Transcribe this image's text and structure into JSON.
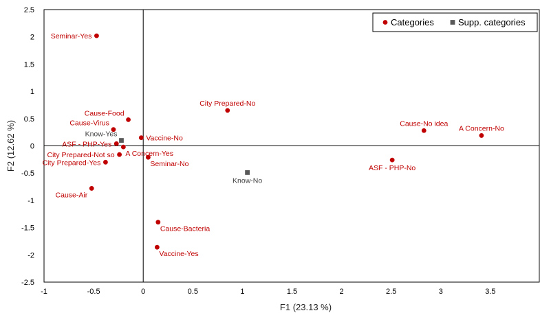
{
  "chart_data": {
    "type": "scatter",
    "xlabel": "F1 (23.13 %)",
    "ylabel": "F2 (12.62 %)",
    "xlim": [
      -1,
      4
    ],
    "ylim": [
      -2.5,
      2.5
    ],
    "x_ticks": [
      -1,
      -0.5,
      0,
      0.5,
      1,
      1.5,
      2,
      2.5,
      3,
      3.5
    ],
    "y_ticks": [
      -2.5,
      -2,
      -1.5,
      -1,
      -0.5,
      0,
      0.5,
      1,
      1.5,
      2,
      2.5
    ],
    "x_tick_labels": [
      "-1",
      "-0.5",
      "0",
      "0.5",
      "1",
      "1.5",
      "2",
      "2.5",
      "3",
      "3.5"
    ],
    "y_tick_labels": [
      "-2.5",
      "-2",
      "-1.5",
      "-1",
      "-0.5",
      "0",
      "0.5",
      "1",
      "1.5",
      "2",
      "2.5"
    ],
    "grid": false,
    "legend_position": "top-right",
    "series": [
      {
        "name": "Categories",
        "marker": "circle",
        "color": "#c00000",
        "points": [
          {
            "label": "Seminar-Yes",
            "x": -0.47,
            "y": 2.02,
            "label_pos": "left"
          },
          {
            "label": "City Prepared-No",
            "x": 0.85,
            "y": 0.65,
            "label_pos": "above"
          },
          {
            "label": "Cause-Food",
            "x": -0.15,
            "y": 0.48,
            "label_pos": "upper-left"
          },
          {
            "label": "Cause-Virus",
            "x": -0.3,
            "y": 0.3,
            "label_pos": "upper-left"
          },
          {
            "label": "Vaccine-No",
            "x": -0.02,
            "y": 0.15,
            "label_pos": "right"
          },
          {
            "label": "ASF - PHP-Yes",
            "x": -0.27,
            "y": 0.04,
            "label_pos": "left"
          },
          {
            "label": "A Concern-Yes",
            "x": -0.2,
            "y": -0.02,
            "label_pos": "lower-right"
          },
          {
            "label": "City Prepared-Not so",
            "x": -0.24,
            "y": -0.16,
            "label_pos": "left"
          },
          {
            "label": "Seminar-No",
            "x": 0.05,
            "y": -0.21,
            "label_pos": "lower-right"
          },
          {
            "label": "City Prepared-Yes",
            "x": -0.38,
            "y": -0.3,
            "label_pos": "left"
          },
          {
            "label": "Cause-Air",
            "x": -0.52,
            "y": -0.78,
            "label_pos": "lower-left"
          },
          {
            "label": "Cause-Bacteria",
            "x": 0.15,
            "y": -1.4,
            "label_pos": "lower-right"
          },
          {
            "label": "Vaccine-Yes",
            "x": 0.14,
            "y": -1.86,
            "label_pos": "lower-right"
          },
          {
            "label": "Cause-No idea",
            "x": 2.83,
            "y": 0.28,
            "label_pos": "above"
          },
          {
            "label": "A Concern-No",
            "x": 3.41,
            "y": 0.19,
            "label_pos": "above"
          },
          {
            "label": "ASF - PHP-No",
            "x": 2.51,
            "y": -0.26,
            "label_pos": "below"
          }
        ]
      },
      {
        "name": "Supp. categories",
        "marker": "square",
        "color": "#595959",
        "points": [
          {
            "label": "Know-Yes",
            "x": -0.22,
            "y": 0.1,
            "label_pos": "upper-left"
          },
          {
            "label": "Know-No",
            "x": 1.05,
            "y": -0.49,
            "label_pos": "below"
          }
        ]
      }
    ]
  }
}
